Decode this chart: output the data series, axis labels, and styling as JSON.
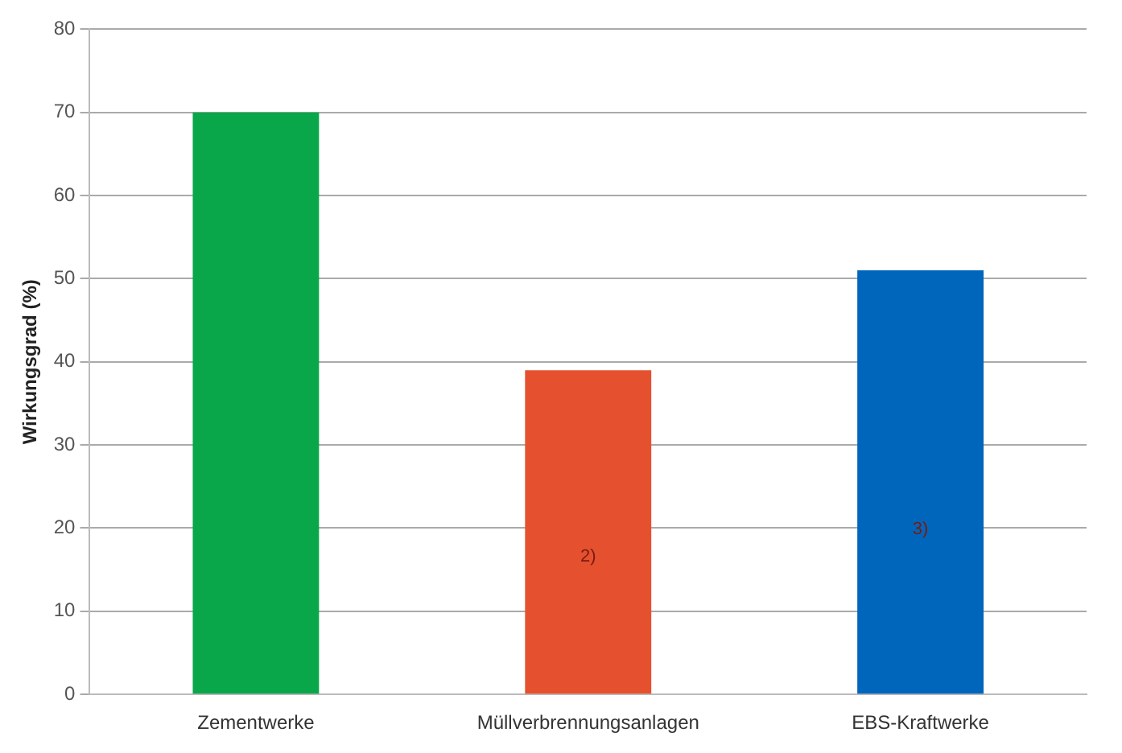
{
  "chart_data": {
    "type": "bar",
    "ylabel": "Wirkungsgrad (%)",
    "categories": [
      "Zementwerke",
      "Müllverbrennungsanlagen",
      "EBS-Kraftwerke"
    ],
    "values": [
      70,
      39,
      51
    ],
    "colors": [
      "#0aa64a",
      "#e5512f",
      "#0066bb"
    ],
    "ylim": [
      0,
      80
    ],
    "yticks": [
      0,
      10,
      20,
      30,
      40,
      50,
      60,
      70,
      80
    ],
    "grid": "y",
    "annotations": [
      "2)",
      "3)"
    ]
  }
}
